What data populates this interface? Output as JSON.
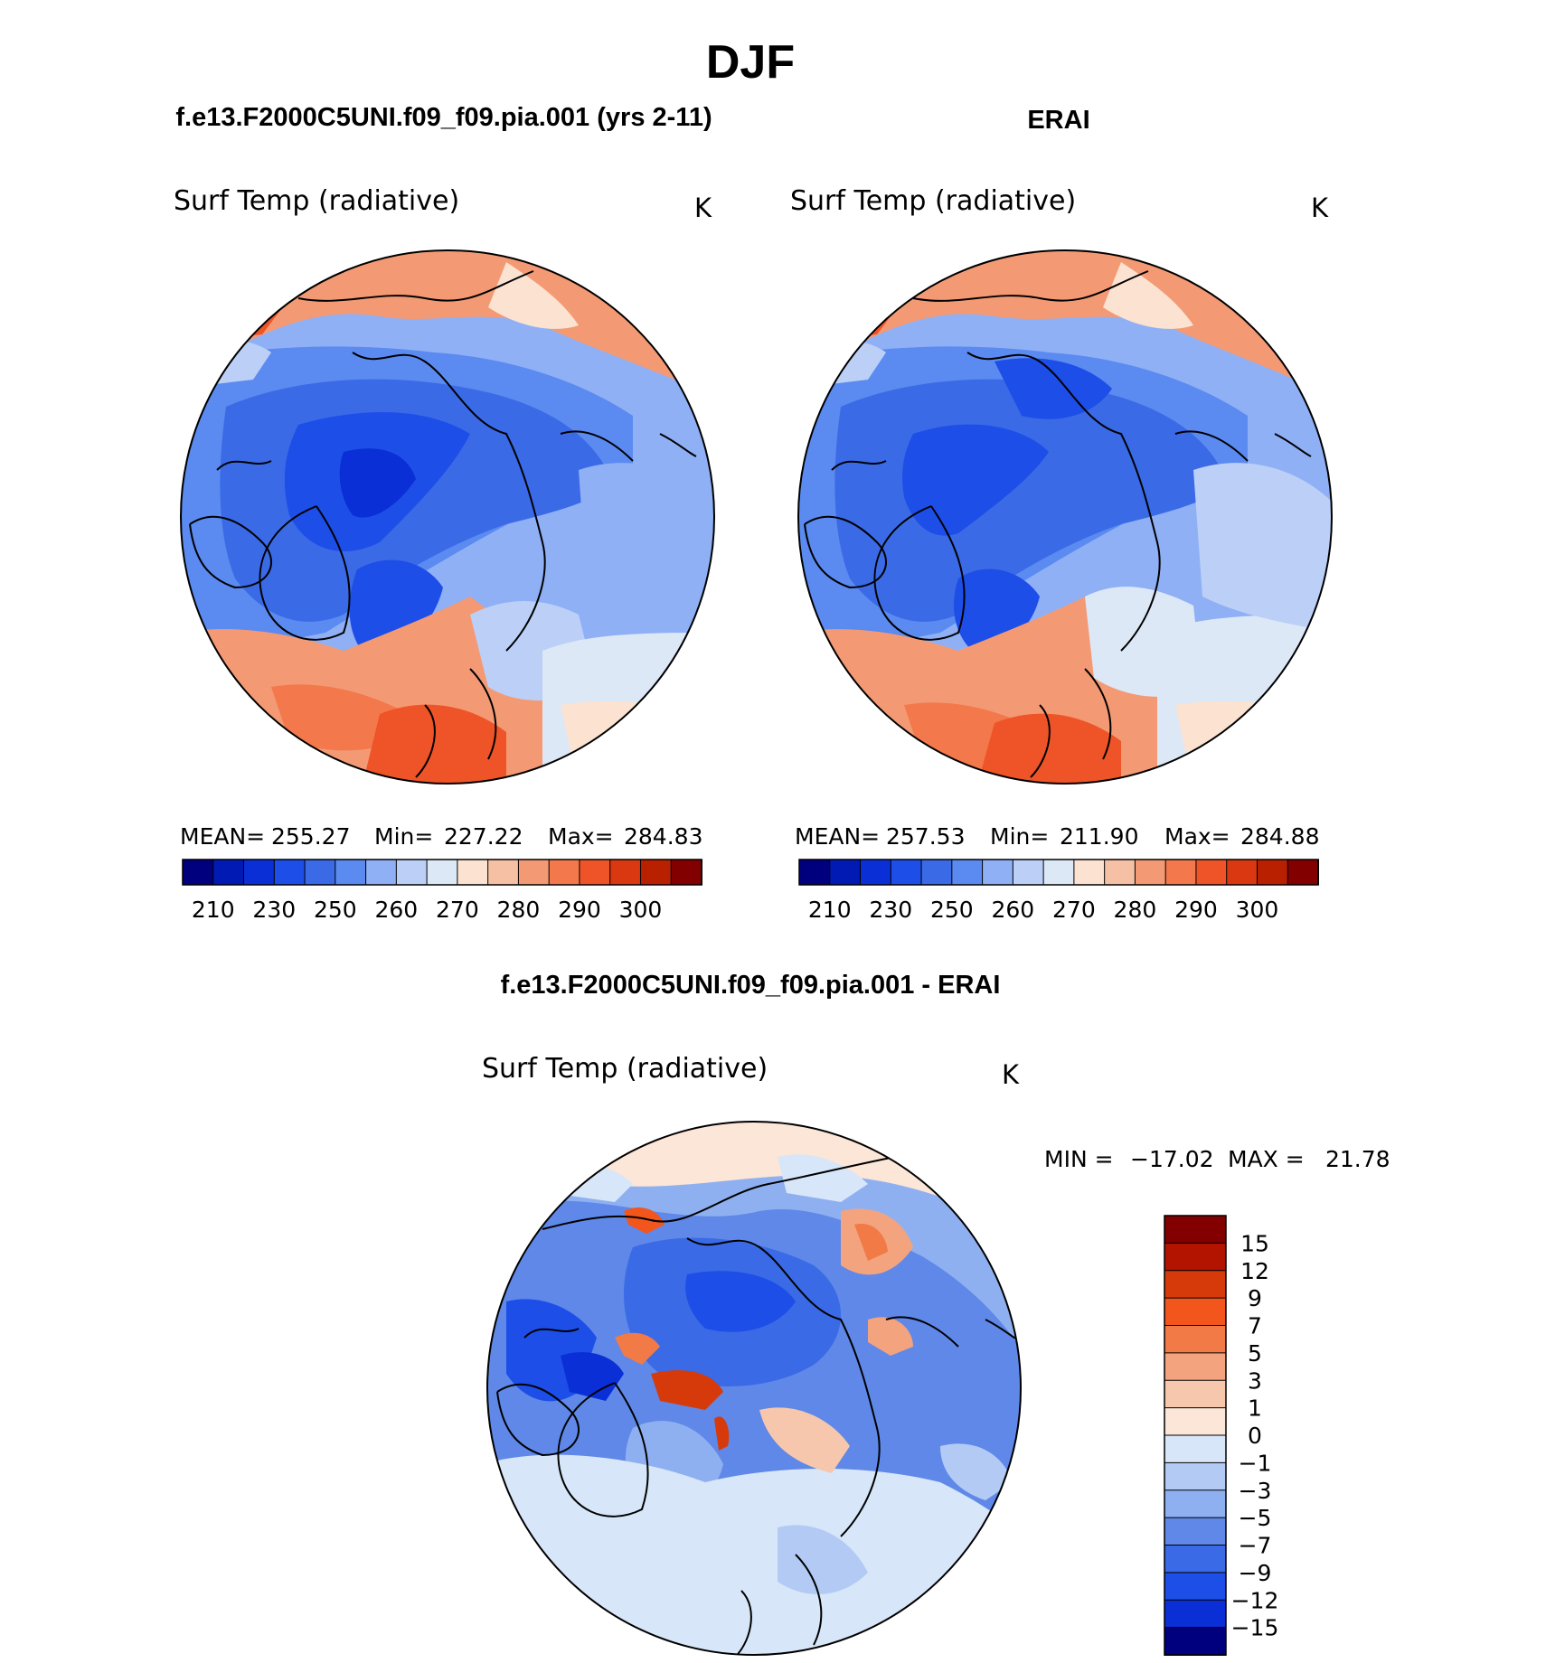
{
  "chart_data": {
    "type": "heatmap",
    "title": "DJF",
    "panels": [
      {
        "id": "model",
        "header": "f.e13.F2000C5UNI.f09_f09.pia.001 (yrs 2-11)",
        "variable": "Surf Temp (radiative)",
        "units": "K",
        "projection": "north polar stereographic",
        "stats": {
          "mean_label": "MEAN=",
          "mean": "255.27",
          "min_label": "Min=",
          "min": "227.22",
          "max_label": "Max=",
          "max": "284.83"
        },
        "colorbar_ticks": [
          "210",
          "230",
          "250",
          "260",
          "270",
          "280",
          "290",
          "300"
        ]
      },
      {
        "id": "obs",
        "header": "ERAI",
        "variable": "Surf Temp (radiative)",
        "units": "K",
        "projection": "north polar stereographic",
        "stats": {
          "mean_label": "MEAN=",
          "mean": "257.53",
          "min_label": "Min=",
          "min": "211.90",
          "max_label": "Max=",
          "max": "284.88"
        },
        "colorbar_ticks": [
          "210",
          "230",
          "250",
          "260",
          "270",
          "280",
          "290",
          "300"
        ]
      },
      {
        "id": "diff",
        "header": "f.e13.F2000C5UNI.f09_f09.pia.001 - ERAI",
        "variable": "Surf Temp (radiative)",
        "units": "K",
        "projection": "north polar stereographic",
        "minmax": {
          "min_label": "MIN =",
          "min": "−17.02",
          "max_label": "MAX =",
          "max": "21.78"
        },
        "colorbar_ticks": [
          "15",
          "12",
          "9",
          "7",
          "5",
          "3",
          "1",
          "0",
          "−1",
          "−3",
          "−5",
          "−7",
          "−9",
          "−12",
          "−15"
        ]
      }
    ],
    "abs_palette": [
      "#00007f",
      "#001ab3",
      "#0a2fd6",
      "#1d4ee8",
      "#3a6ae6",
      "#5b8af0",
      "#8fb0f5",
      "#bcd0f7",
      "#dde8f7",
      "#fbe2d1",
      "#f6c0a4",
      "#f39a75",
      "#f3784c",
      "#ee5428",
      "#d93810",
      "#b82000",
      "#820000"
    ],
    "diff_palette": [
      "#820000",
      "#b31400",
      "#d63a0a",
      "#f2561d",
      "#f27a47",
      "#f4a37f",
      "#f7c7ad",
      "#fbe6d8",
      "#d7e6f8",
      "#b3cbf4",
      "#8fb0f0",
      "#5f88e8",
      "#3a6ae6",
      "#1d4ee8",
      "#0a2fd6",
      "#00007f"
    ]
  }
}
